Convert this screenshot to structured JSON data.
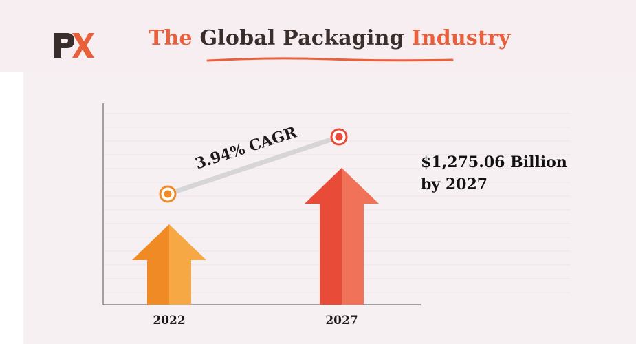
{
  "header": {
    "logo_text": "PX",
    "title_part1": "The",
    "title_part2": "Global Packaging",
    "title_part3": "Industry"
  },
  "colors": {
    "accent": "#e8603c",
    "dark_text": "#3a2e2c",
    "arrow_2022_dark": "#f08a25",
    "arrow_2022_light": "#f6a844",
    "arrow_2027_dark": "#e84b38",
    "arrow_2027_light": "#f07259",
    "trend_line": "#d6d6d6"
  },
  "chart_data": {
    "type": "bar",
    "categories": [
      "2022",
      "2027"
    ],
    "growth_label": "3.94% CAGR",
    "annotation_lines": [
      "$1,275.06 Billion",
      "by 2027"
    ],
    "grid": true,
    "legend": "none"
  }
}
